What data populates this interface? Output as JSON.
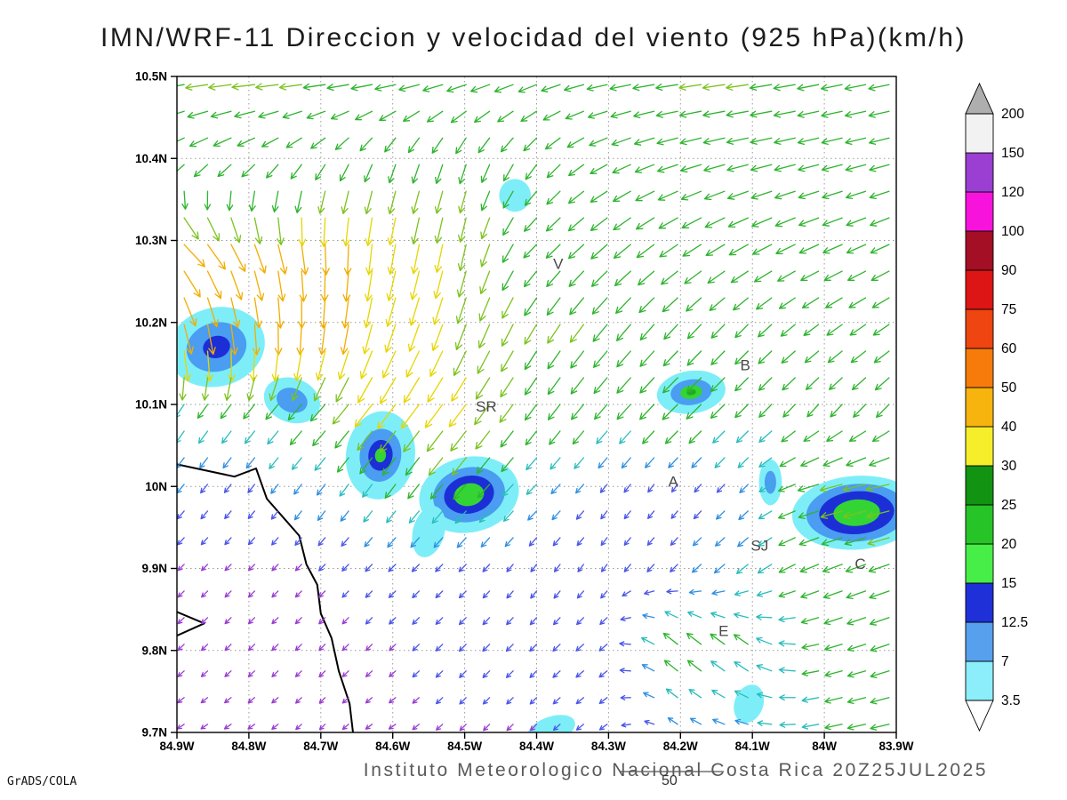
{
  "title": "IMN/WRF-11 Direccion y velocidad del viento (925 hPa)(km/h)",
  "footer": {
    "institute": "Instituto Meteorologico Nacional Costa Rica 20Z25JUL2025",
    "ref_label": "50",
    "credit": "GrADS/COLA"
  },
  "chart_data": {
    "type": "vector-field-map",
    "title": "IMN/WRF-11 Direccion y velocidad del viento (925 hPa)(km/h)",
    "grid": true,
    "x_axis": {
      "range": [
        -84.9,
        -83.9
      ],
      "values": [
        -84.9,
        -84.8,
        -84.7,
        -84.6,
        -84.5,
        -84.4,
        -84.3,
        -84.2,
        -84.1,
        -84.0,
        -83.9
      ],
      "ticks": [
        "84.9W",
        "84.8W",
        "84.7W",
        "84.6W",
        "84.5W",
        "84.4W",
        "84.3W",
        "84.2W",
        "84.1W",
        "84W",
        "83.9W"
      ]
    },
    "y_axis": {
      "range": [
        9.7,
        10.5
      ],
      "values": [
        10.5,
        10.4,
        10.3,
        10.2,
        10.1,
        10.0,
        9.9,
        9.8,
        9.7
      ],
      "ticks": [
        "10.5N",
        "10.4N",
        "10.3N",
        "10.2N",
        "10.1N",
        "10N",
        "9.9N",
        "9.8N",
        "9.7N"
      ]
    },
    "colorbar": {
      "levels": [
        "3.5",
        "7",
        "12.5",
        "15",
        "20",
        "25",
        "30",
        "40",
        "50",
        "60",
        "75",
        "90",
        "100",
        "120",
        "150",
        "200"
      ],
      "colors": [
        "#8ceefa",
        "#57a0ee",
        "#2030d8",
        "#47ee47",
        "#27c427",
        "#129312",
        "#f6ee2a",
        "#f7b40e",
        "#f67b0a",
        "#ee4511",
        "#dd1515",
        "#a40f25",
        "#f713dc",
        "#9a3fd1",
        "#f2f2f2"
      ],
      "under_color": "#ffffff",
      "over_color": "#aeaeae"
    },
    "arrow_color_stops": [
      [
        4.5,
        "#9a3dd1"
      ],
      [
        7.5,
        "#4a57e8"
      ],
      [
        11,
        "#2f8fe0"
      ],
      [
        15,
        "#2bbcbc"
      ],
      [
        22,
        "#2fb42f"
      ],
      [
        29,
        "#7cc21e"
      ],
      [
        36,
        "#e6d600"
      ],
      [
        45,
        "#f2ad00"
      ],
      [
        55,
        "#f57e00"
      ],
      [
        68,
        "#ee4400"
      ],
      [
        85,
        "#dd1111"
      ],
      [
        9999,
        "#ee22aa"
      ]
    ],
    "wind_grid": {
      "lons": [
        -84.9,
        -84.8,
        -84.7,
        -84.6,
        -84.5,
        -84.4,
        -84.3,
        -84.2,
        -84.1,
        -84.0,
        -83.9
      ],
      "lats": [
        10.5,
        10.4,
        10.3,
        10.2,
        10.1,
        10.0,
        9.9,
        9.8,
        9.7
      ],
      "u": [
        [
          -22,
          -24,
          -23,
          -22,
          -20,
          -18,
          -20,
          -22,
          -22,
          -21,
          -20
        ],
        [
          -16,
          -14,
          -10,
          -6,
          -6,
          -10,
          -16,
          -20,
          -21,
          -20,
          -19
        ],
        [
          28,
          14,
          2,
          -6,
          -6,
          -12,
          -16,
          -18,
          -19,
          -19,
          -18
        ],
        [
          12,
          4,
          -4,
          -10,
          -10,
          -12,
          -14,
          -13,
          -12,
          -14,
          -15
        ],
        [
          -8,
          -10,
          -14,
          -20,
          -18,
          -11,
          -12,
          -15,
          -12,
          -10,
          -12
        ],
        [
          -5,
          -4,
          -6,
          -9,
          -12,
          -8,
          -4,
          -3,
          -6,
          -22,
          -24
        ],
        [
          -3,
          -3,
          -3,
          -4,
          -4,
          -3,
          -3,
          -5,
          -10,
          -18,
          -20
        ],
        [
          -3,
          -3,
          -3,
          -3,
          -4,
          -4,
          -5,
          -14,
          -13,
          -15,
          -18
        ],
        [
          -3,
          -3,
          -2,
          -3,
          -3,
          -3,
          -4,
          -6,
          -10,
          -15,
          -18
        ]
      ],
      "v": [
        [
          -3,
          -2,
          -2,
          -3,
          -5,
          -6,
          -4,
          -3,
          -3,
          -4,
          -4
        ],
        [
          -10,
          -9,
          -12,
          -16,
          -18,
          -14,
          -8,
          -6,
          -5,
          -5,
          -5
        ],
        [
          -26,
          -34,
          -38,
          -34,
          -28,
          -12,
          -14,
          -12,
          -10,
          -8,
          -8
        ],
        [
          -44,
          -44,
          -40,
          -30,
          -27,
          -20,
          -17,
          -14,
          -12,
          -10,
          -10
        ],
        [
          -12,
          -13,
          -16,
          -27,
          -24,
          -15,
          -14,
          -15,
          -12,
          -11,
          -12
        ],
        [
          -6,
          -5,
          -8,
          -12,
          -14,
          -8,
          -5,
          -4,
          -6,
          -6,
          -5
        ],
        [
          -3,
          -3,
          -3,
          -4,
          -4,
          -4,
          -4,
          -5,
          -8,
          -7,
          -7
        ],
        [
          -3,
          -3,
          -3,
          -3,
          -4,
          -4,
          -4,
          12,
          10,
          -4,
          -6
        ],
        [
          -2,
          -2,
          -2,
          -2,
          -3,
          -3,
          -3,
          4,
          2,
          -3,
          -4
        ]
      ]
    },
    "annotations": [
      {
        "text": "V",
        "lon": -84.37,
        "lat": 10.272
      },
      {
        "text": "B",
        "lon": -84.11,
        "lat": 10.148
      },
      {
        "text": "SR",
        "lon": -84.47,
        "lat": 10.098
      },
      {
        "text": "A",
        "lon": -84.21,
        "lat": 10.006
      },
      {
        "text": "SJ",
        "lon": -84.09,
        "lat": 9.928
      },
      {
        "text": "C",
        "lon": -83.95,
        "lat": 9.906
      },
      {
        "text": "E",
        "lon": -84.14,
        "lat": 9.824
      }
    ],
    "shaded_regions": [
      {
        "lon": -84.845,
        "lat": 10.17,
        "rx": 0.068,
        "ry": 0.048,
        "rot": -15,
        "layers": [
          {
            "s": 1,
            "c": "#7deef8"
          },
          {
            "s": 0.62,
            "c": "#4a9df0"
          },
          {
            "s": 0.28,
            "c": "#1c2fd6"
          }
        ]
      },
      {
        "lon": -84.74,
        "lat": 10.105,
        "rx": 0.04,
        "ry": 0.027,
        "rot": 20,
        "layers": [
          {
            "s": 1,
            "c": "#7deef8"
          },
          {
            "s": 0.55,
            "c": "#4a9df0"
          }
        ]
      },
      {
        "lon": -84.617,
        "lat": 10.038,
        "rx": 0.048,
        "ry": 0.054,
        "rot": 8,
        "layers": [
          {
            "s": 1,
            "c": "#7deef8"
          },
          {
            "s": 0.6,
            "c": "#4a9df0"
          },
          {
            "s": 0.35,
            "c": "#1c2fd6"
          },
          {
            "s": 0.16,
            "c": "#35d435"
          }
        ]
      },
      {
        "lon": -84.494,
        "lat": 9.99,
        "rx": 0.07,
        "ry": 0.046,
        "rot": -12,
        "layers": [
          {
            "s": 1,
            "c": "#7deef8"
          },
          {
            "s": 0.72,
            "c": "#4a9df0"
          },
          {
            "s": 0.5,
            "c": "#1c2fd6"
          },
          {
            "s": 0.3,
            "c": "#35d435"
          }
        ]
      },
      {
        "lon": -84.55,
        "lat": 9.945,
        "rx": 0.022,
        "ry": 0.032,
        "rot": 15,
        "layers": [
          {
            "s": 1,
            "c": "#7deef8"
          }
        ]
      },
      {
        "lon": -84.43,
        "lat": 10.355,
        "rx": 0.022,
        "ry": 0.02,
        "rot": 0,
        "layers": [
          {
            "s": 1,
            "c": "#7deef8"
          }
        ]
      },
      {
        "lon": -84.185,
        "lat": 10.115,
        "rx": 0.048,
        "ry": 0.026,
        "rot": -8,
        "layers": [
          {
            "s": 1,
            "c": "#7deef8"
          },
          {
            "s": 0.6,
            "c": "#4a9df0"
          },
          {
            "s": 0.32,
            "c": "#35d435"
          },
          {
            "s": 0.14,
            "c": "#22aa22"
          }
        ]
      },
      {
        "lon": -84.075,
        "lat": 10.005,
        "rx": 0.016,
        "ry": 0.028,
        "rot": 0,
        "layers": [
          {
            "s": 1,
            "c": "#7deef8"
          },
          {
            "s": 0.5,
            "c": "#4a9df0"
          }
        ]
      },
      {
        "lon": -83.955,
        "lat": 9.968,
        "rx": 0.09,
        "ry": 0.045,
        "rot": -4,
        "layers": [
          {
            "s": 1,
            "c": "#7deef8"
          },
          {
            "s": 0.78,
            "c": "#4a9df0"
          },
          {
            "s": 0.58,
            "c": "#1c2fd6"
          },
          {
            "s": 0.36,
            "c": "#35d435"
          }
        ]
      },
      {
        "lon": -84.105,
        "lat": 9.735,
        "rx": 0.02,
        "ry": 0.024,
        "rot": 20,
        "layers": [
          {
            "s": 1,
            "c": "#7deef8"
          }
        ]
      },
      {
        "lon": -84.38,
        "lat": 9.703,
        "rx": 0.035,
        "ry": 0.016,
        "rot": -20,
        "layers": [
          {
            "s": 1,
            "c": "#7deef8"
          }
        ]
      }
    ],
    "coastline": [
      [
        [
          -84.9,
          10.027
        ],
        [
          -84.82,
          10.012
        ],
        [
          -84.79,
          10.022
        ],
        [
          -84.775,
          9.985
        ],
        [
          -84.745,
          9.955
        ],
        [
          -84.73,
          9.94
        ],
        [
          -84.72,
          9.905
        ],
        [
          -84.705,
          9.88
        ],
        [
          -84.7,
          9.845
        ],
        [
          -84.685,
          9.815
        ],
        [
          -84.675,
          9.775
        ],
        [
          -84.66,
          9.735
        ],
        [
          -84.655,
          9.698
        ]
      ],
      [
        [
          -84.9,
          9.847
        ],
        [
          -84.862,
          9.833
        ],
        [
          -84.9,
          9.818
        ]
      ]
    ]
  }
}
